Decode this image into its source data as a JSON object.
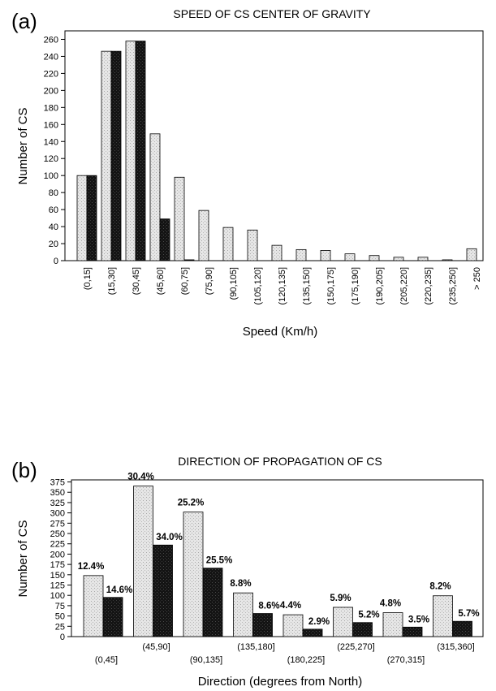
{
  "chart_data": [
    {
      "type": "bar",
      "panel": "(a)",
      "title": "SPEED OF CS CENTER OF GRAVITY",
      "xlabel": "Speed (Km/h)",
      "ylabel": "Number of CS",
      "ylim": [
        0,
        270
      ],
      "yticks": [
        0,
        20,
        40,
        60,
        80,
        100,
        120,
        140,
        160,
        180,
        200,
        220,
        240,
        260
      ],
      "categories": [
        "(0,15]",
        "(15,30]",
        "(30,45]",
        "(45,60]",
        "(60,75]",
        "(75,90]",
        "(90,105]",
        "(105,120]",
        "(120,135]",
        "(135,150]",
        "(150,175]",
        "(175,190]",
        "(190,205]",
        "(205,220]",
        "(220,235]",
        "(235,250]",
        "> 250"
      ],
      "series": [
        {
          "values": [
            100,
            246,
            258,
            149,
            98,
            59,
            39,
            36,
            18,
            13,
            12,
            8,
            6,
            4,
            4,
            1,
            14
          ],
          "color": "#e2e2e2"
        },
        {
          "values": [
            100,
            246,
            258,
            49,
            1,
            0,
            0,
            0,
            0,
            0,
            0,
            0,
            0,
            0,
            0,
            0,
            0
          ],
          "color": "#111111"
        }
      ],
      "grid": false
    },
    {
      "type": "bar",
      "panel": "(b)",
      "title": "DIRECTION OF PROPAGATION OF CS",
      "xlabel": "Direction (degrees from North)",
      "ylabel": "Number of CS",
      "ylim": [
        0,
        380
      ],
      "yticks": [
        0,
        25,
        50,
        75,
        100,
        125,
        150,
        175,
        200,
        225,
        250,
        275,
        300,
        325,
        350,
        375
      ],
      "categories": [
        "(0,45]",
        "(45,90]",
        "(90,135]",
        "(135,180]",
        "(180,225]",
        "(225,270]",
        "(270,315]",
        "(315,360]"
      ],
      "series": [
        {
          "values": [
            148,
            365,
            302,
            106,
            53,
            71,
            58,
            99
          ],
          "labels": [
            "12.4%",
            "30.4%",
            "25.2%",
            "8.8%",
            "4.4%",
            "5.9%",
            "4.8%",
            "8.2%"
          ],
          "color": "#e2e2e2"
        },
        {
          "values": [
            95,
            222,
            166,
            56,
            18,
            34,
            23,
            37
          ],
          "labels": [
            "14.6%",
            "34.0%",
            "25.5%",
            "8.6%",
            "2.9%",
            "5.2%",
            "3.5%",
            "5.7%"
          ],
          "color": "#111111"
        }
      ],
      "grid": false
    }
  ]
}
